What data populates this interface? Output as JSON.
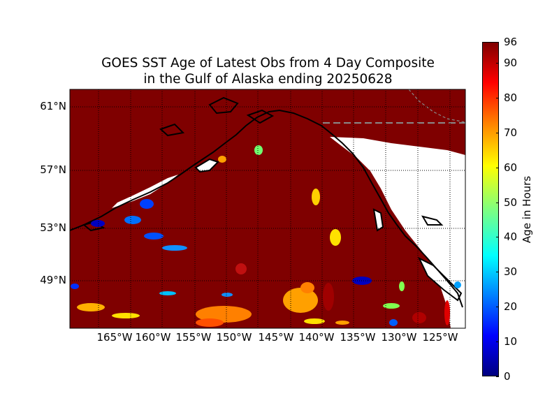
{
  "title": {
    "line1": "GOES SST Age of Latest Obs from 4 Day Composite",
    "line2": "in the Gulf of Alaska ending 20250628"
  },
  "axes": {
    "lat_labels": [
      "61°N",
      "57°N",
      "53°N",
      "49°N"
    ],
    "lon_labels": [
      "165°W",
      "160°W",
      "155°W",
      "150°W",
      "145°W",
      "140°W",
      "135°W",
      "130°W",
      "125°W"
    ]
  },
  "colorbar": {
    "label": "Age in Hours",
    "ticks": [
      "0",
      "10",
      "20",
      "30",
      "40",
      "50",
      "60",
      "70",
      "80",
      "90",
      "96"
    ],
    "range": [
      0,
      96
    ],
    "colormap": "jet"
  },
  "colors": {
    "ocean_max_age": "#7f0000",
    "land": "#ffffff",
    "coastline": "#000000",
    "border": "#8a8a8a"
  }
}
